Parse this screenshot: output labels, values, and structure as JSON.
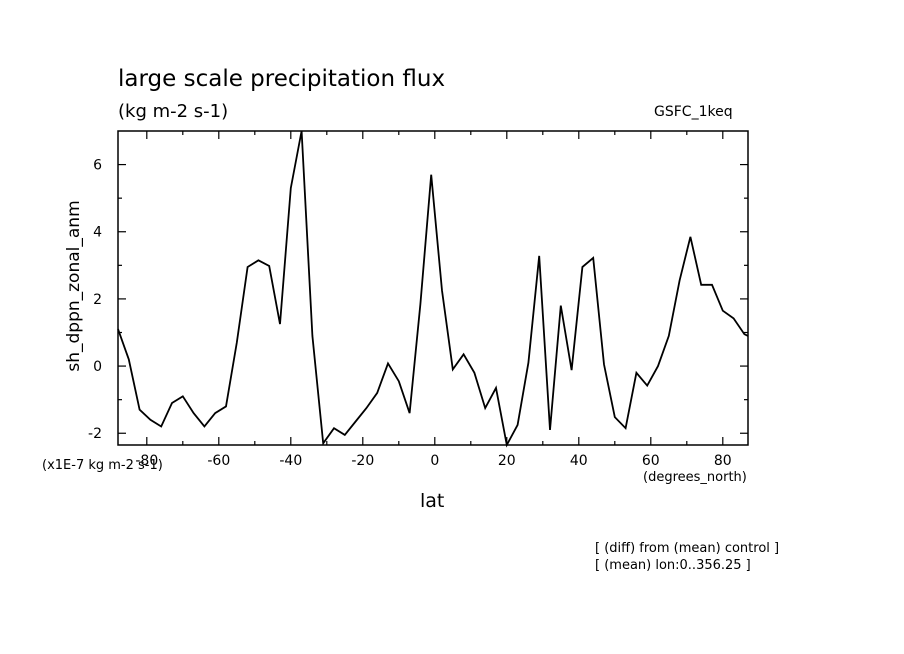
{
  "header": {
    "title": "large scale precipitation flux",
    "subtitle": "(kg m-2 s-1)",
    "model": "GSFC_1keq"
  },
  "footer": {
    "note1": "[ (diff) from (mean) control ]",
    "note2": "[ (mean) lon:0..356.25 ]"
  },
  "chart_data": {
    "type": "line",
    "xlabel": "lat",
    "xunits": "(degrees_north)",
    "ylabel": "sh_dppn_zonal_anm",
    "yunits": "(x1E-7 kg m-2 s-1)",
    "xlim": [
      -88,
      87
    ],
    "ylim": [
      -2.35,
      7.0
    ],
    "xticks": [
      -80,
      -60,
      -40,
      -20,
      0,
      20,
      40,
      60,
      80
    ],
    "yticks": [
      -2,
      0,
      2,
      4,
      6
    ],
    "grid": false,
    "series": [
      {
        "x": [
          -88,
          -85,
          -82,
          -79,
          -76,
          -73,
          -70,
          -67,
          -64,
          -61,
          -58,
          -55,
          -52,
          -49,
          -46,
          -43,
          -40,
          -37,
          -34,
          -31,
          -28,
          -25,
          -22,
          -19,
          -16,
          -13,
          -10,
          -7,
          -4,
          -1,
          2,
          5,
          8,
          11,
          14,
          17,
          20,
          23,
          26,
          29,
          32,
          35,
          38,
          41,
          44,
          47,
          50,
          53,
          56,
          59,
          62,
          65,
          68,
          71,
          74,
          77,
          80,
          83,
          86,
          87
        ],
        "y": [
          1.1,
          0.2,
          -1.3,
          -1.6,
          -1.8,
          -1.1,
          -0.9,
          -1.4,
          -1.8,
          -1.4,
          -1.2,
          0.7,
          2.95,
          3.15,
          2.98,
          1.25,
          5.3,
          7.0,
          0.9,
          -2.3,
          -1.85,
          -2.05,
          -1.65,
          -1.25,
          -0.8,
          0.08,
          -0.45,
          -1.4,
          1.85,
          5.7,
          2.25,
          -0.1,
          0.35,
          -0.2,
          -1.25,
          -0.65,
          -2.35,
          -1.75,
          0.1,
          3.28,
          -1.9,
          1.8,
          -0.12,
          2.95,
          3.22,
          0.05,
          -1.52,
          -1.85,
          -0.2,
          -0.58,
          0.0,
          0.9,
          2.55,
          3.85,
          2.42,
          2.42,
          1.65,
          1.42,
          0.95,
          0.9
        ]
      }
    ]
  }
}
